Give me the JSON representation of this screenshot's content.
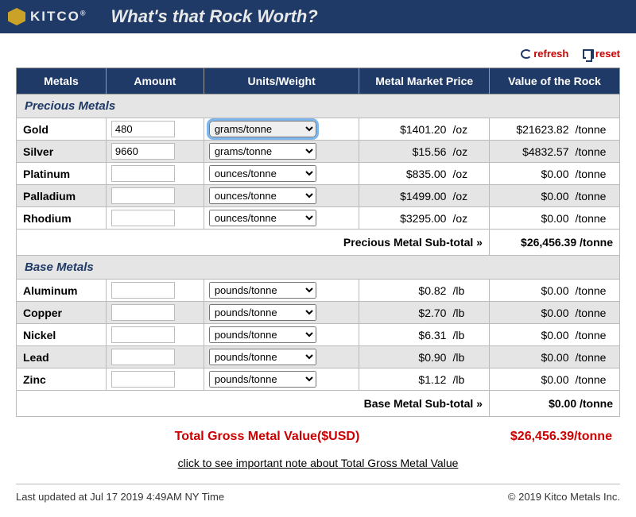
{
  "brand": {
    "name": "KITCO",
    "reg": "®"
  },
  "page_title": "What's that Rock Worth?",
  "actions": {
    "refresh": "refresh",
    "reset": "reset"
  },
  "columns": {
    "metals": "Metals",
    "amount": "Amount",
    "units": "Units/Weight",
    "price": "Metal Market Price",
    "value": "Value of the Rock"
  },
  "sections": {
    "precious": "Precious Metals",
    "base": "Base Metals"
  },
  "unit_options": [
    "grams/tonne",
    "ounces/tonne",
    "pounds/tonne"
  ],
  "precious_metals": [
    {
      "name": "Gold",
      "amount": "480",
      "unit": "grams/tonne",
      "price": "$1401.20",
      "price_unit": "/oz",
      "value": "$21623.82",
      "value_unit": "/tonne",
      "highlight": true
    },
    {
      "name": "Silver",
      "amount": "9660",
      "unit": "grams/tonne",
      "price": "$15.56",
      "price_unit": "/oz",
      "value": "$4832.57",
      "value_unit": "/tonne",
      "alt": true
    },
    {
      "name": "Platinum",
      "amount": "",
      "unit": "ounces/tonne",
      "price": "$835.00",
      "price_unit": "/oz",
      "value": "$0.00",
      "value_unit": "/tonne"
    },
    {
      "name": "Palladium",
      "amount": "",
      "unit": "ounces/tonne",
      "price": "$1499.00",
      "price_unit": "/oz",
      "value": "$0.00",
      "value_unit": "/tonne",
      "alt": true
    },
    {
      "name": "Rhodium",
      "amount": "",
      "unit": "ounces/tonne",
      "price": "$3295.00",
      "price_unit": "/oz",
      "value": "$0.00",
      "value_unit": "/tonne"
    }
  ],
  "precious_subtotal": {
    "label": "Precious Metal Sub-total »",
    "value": "$26,456.39 /tonne"
  },
  "base_metals": [
    {
      "name": "Aluminum",
      "amount": "",
      "unit": "pounds/tonne",
      "price": "$0.82",
      "price_unit": "/lb",
      "value": "$0.00",
      "value_unit": "/tonne"
    },
    {
      "name": "Copper",
      "amount": "",
      "unit": "pounds/tonne",
      "price": "$2.70",
      "price_unit": "/lb",
      "value": "$0.00",
      "value_unit": "/tonne",
      "alt": true
    },
    {
      "name": "Nickel",
      "amount": "",
      "unit": "pounds/tonne",
      "price": "$6.31",
      "price_unit": "/lb",
      "value": "$0.00",
      "value_unit": "/tonne"
    },
    {
      "name": "Lead",
      "amount": "",
      "unit": "pounds/tonne",
      "price": "$0.90",
      "price_unit": "/lb",
      "value": "$0.00",
      "value_unit": "/tonne",
      "alt": true
    },
    {
      "name": "Zinc",
      "amount": "",
      "unit": "pounds/tonne",
      "price": "$1.12",
      "price_unit": "/lb",
      "value": "$0.00",
      "value_unit": "/tonne"
    }
  ],
  "base_subtotal": {
    "label": "Base Metal Sub-total »",
    "value": "$0.00 /tonne"
  },
  "total": {
    "label": "Total Gross Metal Value($USD)",
    "value": "$26,456.39/tonne"
  },
  "note_link": "click to see important note about Total Gross Metal Value",
  "footer": {
    "updated": "Last updated at Jul 17 2019 4:49AM NY Time",
    "copyright": "© 2019 Kitco Metals Inc."
  },
  "colors": {
    "header_bg": "#1f3a66",
    "accent": "#c00",
    "row_alt": "#e5e5e5",
    "gold": "#c9a227"
  }
}
